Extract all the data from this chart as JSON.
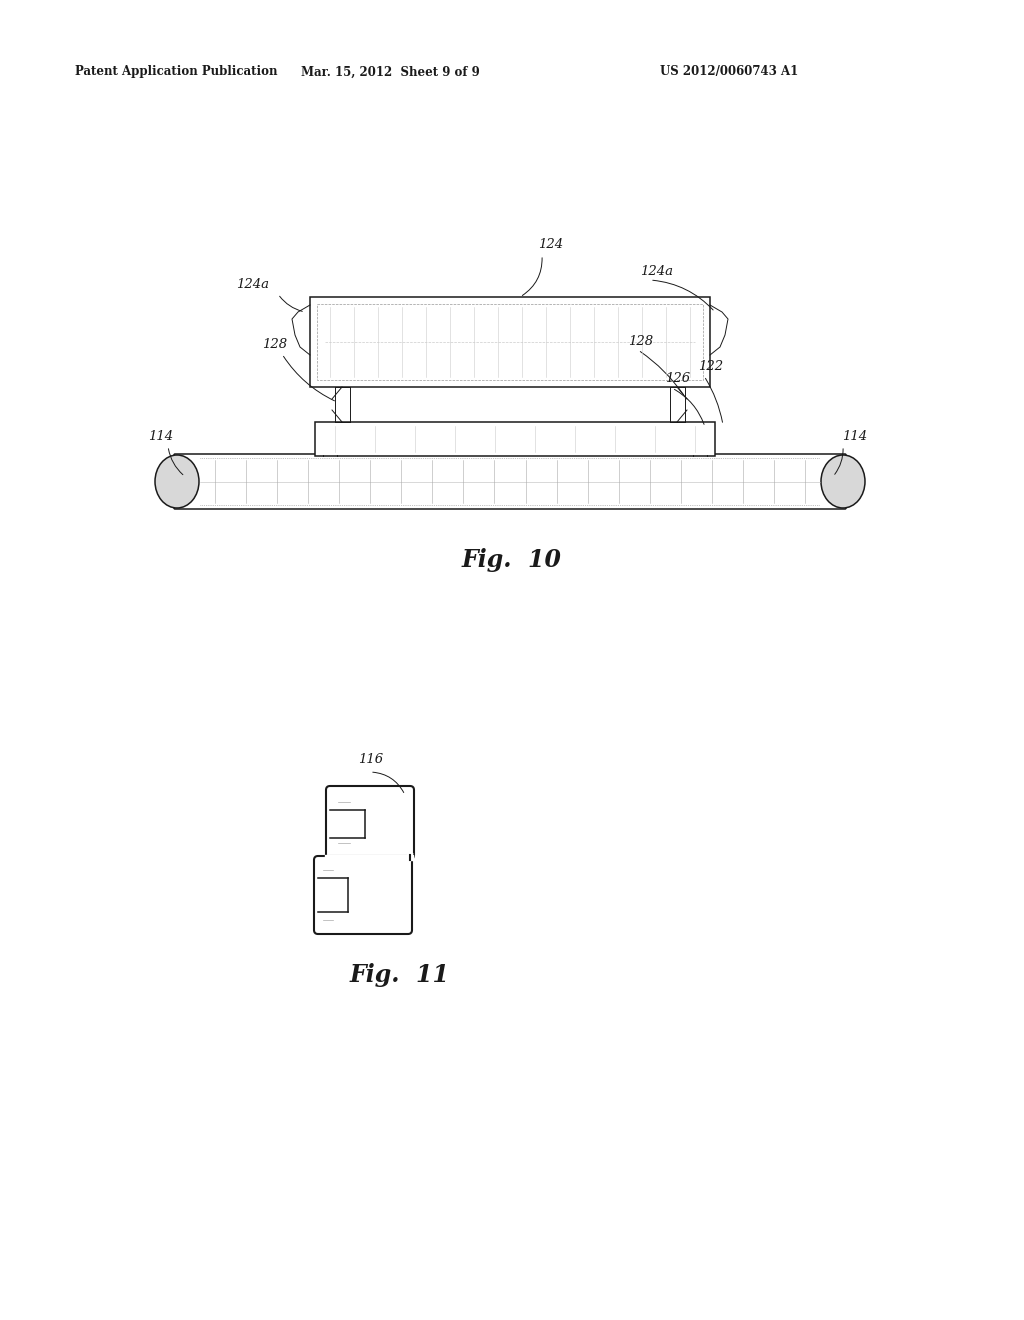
{
  "header_left": "Patent Application Publication",
  "header_mid": "Mar. 15, 2012  Sheet 9 of 9",
  "header_right": "US 2012/0060743 A1",
  "fig10_label": "Fig.  10",
  "fig11_label": "Fig.  11",
  "bg_color": "#ffffff",
  "line_color": "#1a1a1a"
}
